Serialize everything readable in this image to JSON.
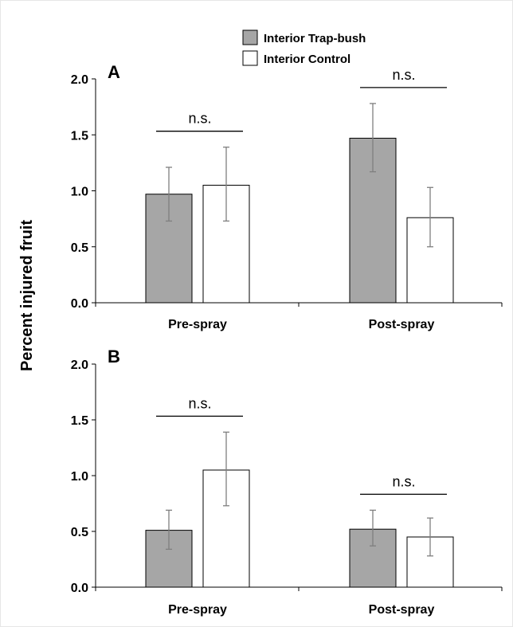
{
  "chart_data": [
    {
      "type": "bar",
      "panel_label": "A",
      "categories": [
        "Pre-spray",
        "Post-spray"
      ],
      "series": [
        {
          "name": "Interior Trap-bush",
          "values": [
            0.97,
            1.47
          ],
          "err_low": [
            0.73,
            1.17
          ],
          "err_high": [
            1.21,
            1.78
          ],
          "color": "#a6a6a6"
        },
        {
          "name": "Interior Control",
          "values": [
            1.05,
            0.76
          ],
          "err_low": [
            0.73,
            0.5
          ],
          "err_high": [
            1.39,
            1.03
          ],
          "color": "#ffffff"
        }
      ],
      "annotations": [
        {
          "category": "Pre-spray",
          "text": "n.s."
        },
        {
          "category": "Post-spray",
          "text": "n.s."
        }
      ],
      "ylim": [
        0,
        2.0
      ],
      "yticks": [
        "0.0",
        "0.5",
        "1.0",
        "1.5",
        "2.0"
      ],
      "ytick_values": [
        0,
        0.5,
        1.0,
        1.5,
        2.0
      ]
    },
    {
      "type": "bar",
      "panel_label": "B",
      "categories": [
        "Pre-spray",
        "Post-spray"
      ],
      "series": [
        {
          "name": "Interior Trap-bush",
          "values": [
            0.51,
            0.52
          ],
          "err_low": [
            0.34,
            0.37
          ],
          "err_high": [
            0.69,
            0.69
          ],
          "color": "#a6a6a6"
        },
        {
          "name": "Interior Control",
          "values": [
            1.05,
            0.45
          ],
          "err_low": [
            0.73,
            0.28
          ],
          "err_high": [
            1.39,
            0.62
          ],
          "color": "#ffffff"
        }
      ],
      "annotations": [
        {
          "category": "Pre-spray",
          "text": "n.s."
        },
        {
          "category": "Post-spray",
          "text": "n.s."
        }
      ],
      "ylim": [
        0,
        2.0
      ],
      "yticks": [
        "0.0",
        "0.5",
        "1.0",
        "1.5",
        "2.0"
      ],
      "ytick_values": [
        0,
        0.5,
        1.0,
        1.5,
        2.0
      ]
    }
  ],
  "ylabel": "Percent injured fruit",
  "legend": [
    "Interior Trap-bush",
    "Interior Control"
  ]
}
